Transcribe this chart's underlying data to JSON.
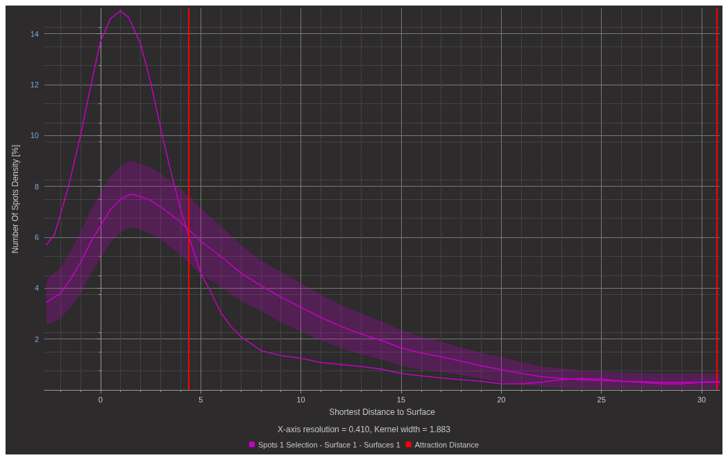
{
  "chart_data": {
    "type": "line",
    "xlabel": "Shortest Distance to Surface",
    "ylabel": "Number Of Spots Density [%]",
    "annotations": [
      "X-axis resolution = 0.410, Kernel width = 1.883"
    ],
    "xlim": [
      -2.8,
      30.9
    ],
    "xticks": [
      0,
      5,
      10,
      15,
      20,
      25,
      30
    ],
    "ylim": [
      0,
      15
    ],
    "yticks": [
      2,
      4,
      6,
      8,
      10,
      12,
      14
    ],
    "grid": true,
    "legend": "bottom",
    "marker": "none",
    "line_style": "solid",
    "series": [
      {
        "name": "Spots 1 Selection - Surface 1 - Surfaces 1",
        "color": "#c800c8",
        "x": [
          -2.7,
          -2.3,
          -2,
          -1.6,
          -1,
          -0.5,
          0,
          0.5,
          1,
          1.4,
          2,
          2.5,
          3,
          3.5,
          4,
          4.5,
          5,
          5.5,
          6,
          6.5,
          7,
          8,
          9,
          10,
          11,
          12,
          13,
          14,
          15,
          16,
          17,
          18,
          19,
          20,
          21,
          22,
          23,
          24,
          25,
          26,
          27,
          28,
          29,
          30,
          30.9
        ],
        "values": [
          5.7,
          6.1,
          6.9,
          8.0,
          10.0,
          11.9,
          13.7,
          14.6,
          14.9,
          14.65,
          13.6,
          12.1,
          10.3,
          8.6,
          7.1,
          5.8,
          4.6,
          3.85,
          3.05,
          2.5,
          2.1,
          1.55,
          1.35,
          1.25,
          1.08,
          1.0,
          0.92,
          0.82,
          0.65,
          0.55,
          0.47,
          0.4,
          0.34,
          0.24,
          0.24,
          0.3,
          0.4,
          0.45,
          0.42,
          0.34,
          0.3,
          0.24,
          0.24,
          0.3,
          0.34
        ]
      },
      {
        "color": "#c800c8",
        "x": [
          -2.7,
          -2,
          -1.5,
          -1,
          -0.5,
          0,
          0.5,
          1,
          1.5,
          2,
          2.5,
          3,
          4,
          5,
          6,
          7,
          8,
          9,
          10,
          11,
          12,
          13,
          14,
          15,
          16,
          17,
          18,
          19,
          20,
          21,
          22,
          23,
          24,
          25,
          26,
          27,
          28,
          29,
          30,
          30.9
        ],
        "values": [
          3.45,
          3.8,
          4.35,
          5.0,
          5.8,
          6.45,
          7.1,
          7.5,
          7.7,
          7.6,
          7.45,
          7.2,
          6.6,
          5.85,
          5.25,
          4.6,
          4.1,
          3.65,
          3.25,
          2.85,
          2.5,
          2.2,
          1.95,
          1.65,
          1.45,
          1.3,
          1.13,
          0.95,
          0.8,
          0.65,
          0.52,
          0.46,
          0.4,
          0.37,
          0.34,
          0.32,
          0.3,
          0.3,
          0.3,
          0.3
        ],
        "upper": [
          4.35,
          4.8,
          5.45,
          6.2,
          7.05,
          7.75,
          8.4,
          8.8,
          9.0,
          8.9,
          8.75,
          8.5,
          7.9,
          7.15,
          6.45,
          5.7,
          5.1,
          4.65,
          4.2,
          3.75,
          3.35,
          3.0,
          2.7,
          2.35,
          2.1,
          1.9,
          1.68,
          1.45,
          1.3,
          1.1,
          0.92,
          0.86,
          0.75,
          0.72,
          0.69,
          0.67,
          0.65,
          0.65,
          0.65,
          0.65
        ],
        "lower": [
          2.55,
          2.8,
          3.25,
          3.8,
          4.55,
          5.15,
          5.8,
          6.2,
          6.4,
          6.3,
          6.15,
          5.9,
          5.3,
          4.55,
          4.05,
          3.5,
          3.1,
          2.65,
          2.3,
          1.95,
          1.65,
          1.4,
          1.2,
          0.95,
          0.8,
          0.7,
          0.58,
          0.45,
          0.3,
          0.2,
          0.12,
          0.06,
          0.05,
          0.05,
          0.05,
          0.05,
          0.05,
          0.05,
          0.05,
          0.05
        ]
      }
    ],
    "ref_lines": [
      {
        "axis": "x",
        "value": 4.4,
        "label": "Attraction Distance",
        "color": "#ff0000"
      },
      {
        "axis": "x",
        "value": 30.75,
        "color": "#ff0000"
      }
    ]
  }
}
